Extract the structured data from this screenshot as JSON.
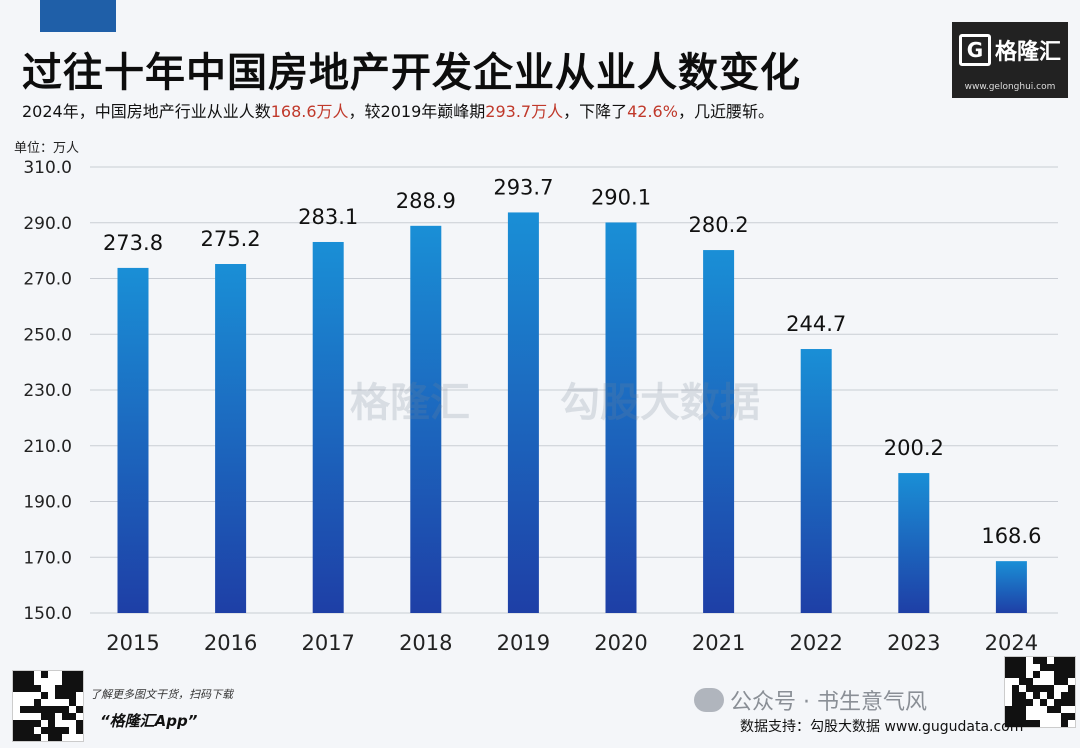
{
  "title": "过往十年中国房地产开发企业从业人数变化",
  "subtitle": {
    "p1": "2024年，中国房地产行业从业人数",
    "v1": "168.6万人",
    "p2": "，较2019年巅峰期",
    "v2": "293.7万人",
    "p3": "，下降了",
    "v3": "42.6%",
    "p4": "，几近腰斩。"
  },
  "brand": {
    "name": "格隆汇",
    "url": "www.gelonghui.com"
  },
  "unit_label": "单位：万人",
  "watermarks": {
    "left": "格隆汇",
    "right": "勾股大数据"
  },
  "colors": {
    "bar_top": "#1a8fd6",
    "bar_bottom": "#1e3fa6",
    "highlight": "#c0392b"
  },
  "chart_data": {
    "type": "bar",
    "categories": [
      "2015",
      "2016",
      "2017",
      "2018",
      "2019",
      "2020",
      "2021",
      "2022",
      "2023",
      "2024"
    ],
    "values": [
      273.8,
      275.2,
      283.1,
      288.9,
      293.7,
      290.1,
      280.2,
      244.7,
      200.2,
      168.6
    ],
    "value_labels": [
      "273.8",
      "275.2",
      "283.1",
      "288.9",
      "293.7",
      "290.1",
      "280.2",
      "244.7",
      "200.2",
      "168.6"
    ],
    "ylim": [
      150,
      310
    ],
    "yticks": [
      150,
      170,
      190,
      210,
      230,
      250,
      270,
      290,
      310
    ],
    "ytick_labels": [
      "150.0",
      "170.0",
      "190.0",
      "210.0",
      "230.0",
      "250.0",
      "270.0",
      "290.0",
      "310.0"
    ],
    "grid": true,
    "ylabel": "单位：万人",
    "xlabel": "",
    "title": "过往十年中国房地产开发企业从业人数变化"
  },
  "footer": {
    "tagline": "了解更多图文干货，扫码下载",
    "app": "“格隆汇App”",
    "account": "公众号 · 书生意气风",
    "source": "数据支持：勾股大数据 www.gugudata.com"
  }
}
